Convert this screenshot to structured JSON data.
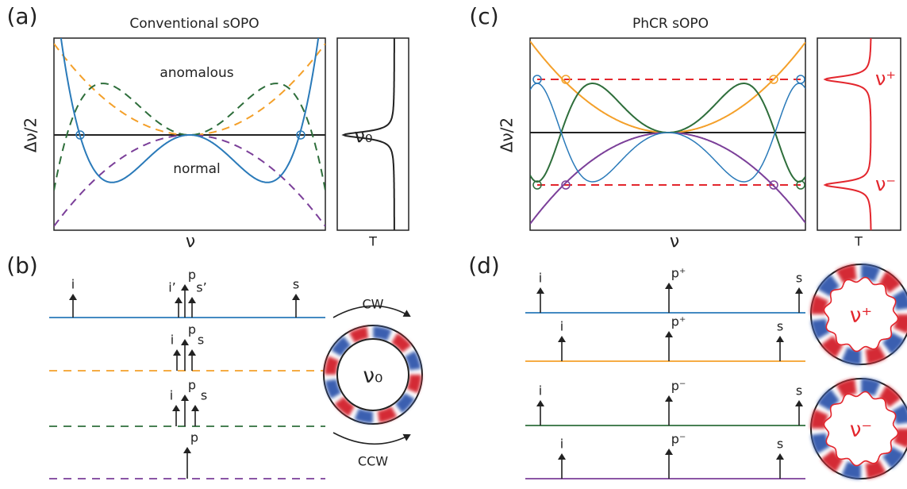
{
  "panel_a": {
    "label": "(a)",
    "title": "Conventional sOPO",
    "y_label": "Δν/2",
    "x_label": "ν",
    "side_label": "T",
    "annotations": [
      "anomalous",
      "normal"
    ],
    "resonance": "ν₀"
  },
  "panel_b": {
    "label": "(b)",
    "rows": [
      [
        "i",
        "p",
        "i’",
        "s’",
        "s"
      ],
      [
        "i",
        "p",
        "s"
      ],
      [
        "i",
        "p",
        "s"
      ],
      [
        "p"
      ]
    ],
    "ring_label": "ν₀",
    "cw": "CW",
    "ccw": "CCW"
  },
  "panel_c": {
    "label": "(c)",
    "title": "PhCR sOPO",
    "y_label": "Δν/2",
    "x_label": "ν",
    "side_label": "T",
    "resonances": [
      "ν⁺",
      "ν⁻"
    ]
  },
  "panel_d": {
    "label": "(d)",
    "rows": [
      [
        "i",
        "p⁺",
        "s"
      ],
      [
        "i",
        "p⁺",
        "s"
      ],
      [
        "i",
        "p⁻",
        "s"
      ],
      [
        "i",
        "p⁻",
        "s"
      ]
    ],
    "ring_labels": [
      "ν⁺",
      "ν⁻"
    ]
  }
}
